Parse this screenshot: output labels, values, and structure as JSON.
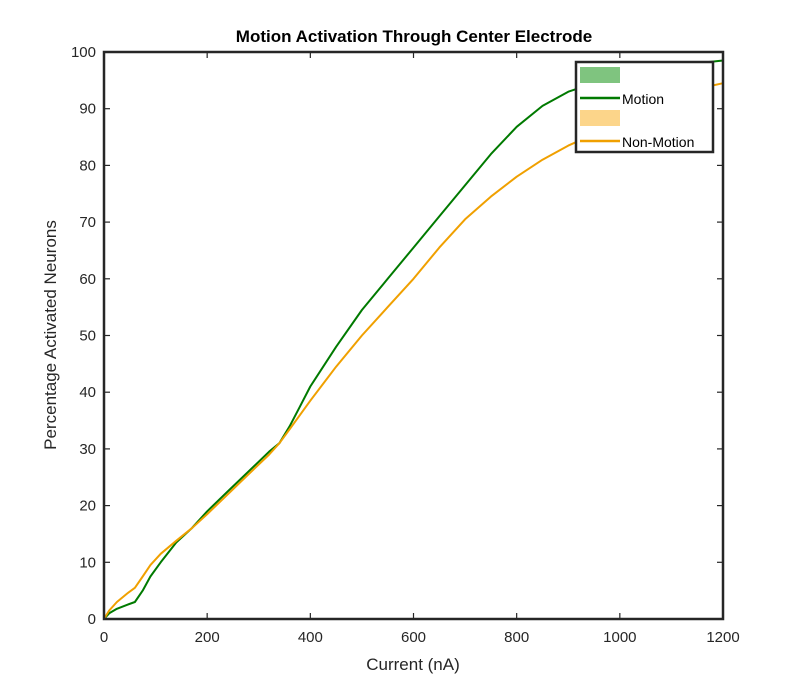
{
  "chart_data": {
    "type": "line",
    "title": "Motion Activation Through Center Electrode",
    "xlabel": "Current (nA)",
    "ylabel": "Percentage Activated Neurons",
    "xlim": [
      0,
      1200
    ],
    "ylim": [
      0,
      100
    ],
    "xticks": [
      "0",
      "200",
      "400",
      "600",
      "800",
      "1000",
      "1200"
    ],
    "yticks": [
      "0",
      "10",
      "20",
      "30",
      "40",
      "50",
      "60",
      "70",
      "80",
      "90",
      "100"
    ],
    "grid": false,
    "legend_position": "top-right",
    "series": [
      {
        "name": "Motion",
        "color": "#007a00",
        "band_color": "#7fc47f",
        "x": [
          0,
          10,
          25,
          45,
          60,
          75,
          90,
          110,
          140,
          170,
          200,
          240,
          280,
          320,
          340,
          360,
          380,
          400,
          450,
          500,
          550,
          600,
          650,
          700,
          750,
          800,
          850,
          900,
          950,
          1000,
          1050,
          1100,
          1150,
          1200
        ],
        "y": [
          0,
          1,
          1.8,
          2.5,
          3,
          5,
          7.5,
          10,
          13.5,
          16,
          19,
          22.5,
          26,
          29.5,
          31,
          34,
          37.5,
          41,
          48,
          54.5,
          60,
          65.5,
          71,
          76.5,
          82,
          86.8,
          90.5,
          93,
          94.5,
          96,
          97,
          97.5,
          98,
          98.5
        ]
      },
      {
        "name": "Non-Motion",
        "color": "#f0a000",
        "band_color": "#fcd58a",
        "x": [
          0,
          10,
          25,
          45,
          60,
          75,
          90,
          110,
          140,
          170,
          200,
          240,
          280,
          320,
          340,
          360,
          380,
          400,
          450,
          500,
          550,
          600,
          650,
          700,
          750,
          800,
          850,
          900,
          950,
          1000,
          1050,
          1100,
          1150,
          1200
        ],
        "y": [
          0,
          1.5,
          3,
          4.5,
          5.5,
          7.5,
          9.5,
          11.5,
          13.8,
          16,
          18.5,
          22,
          25.5,
          29,
          31,
          33.5,
          36,
          38.5,
          44.5,
          50,
          55,
          60,
          65.5,
          70.5,
          74.5,
          78,
          81,
          83.5,
          85.5,
          87.5,
          89.5,
          91.5,
          93.5,
          94.5
        ]
      }
    ]
  }
}
